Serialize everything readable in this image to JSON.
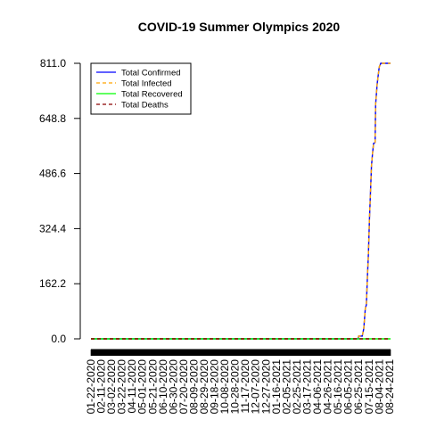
{
  "chart_data": {
    "type": "line",
    "title": "COVID-19 Summer Olympics 2020",
    "xlabel": "",
    "ylabel": "",
    "ylim": [
      0,
      811
    ],
    "yticks": [
      "0.0",
      "162.2",
      "324.4",
      "486.6",
      "648.8",
      "811.0"
    ],
    "xticks": [
      "01-22-2020",
      "02-11-2020",
      "03-02-2020",
      "03-22-2020",
      "04-11-2020",
      "05-01-2020",
      "05-21-2020",
      "06-10-2020",
      "06-30-2020",
      "07-20-2020",
      "08-09-2020",
      "08-29-2020",
      "09-18-2020",
      "10-08-2020",
      "10-28-2020",
      "11-17-2020",
      "12-07-2020",
      "12-27-2020",
      "01-16-2021",
      "02-05-2021",
      "02-25-2021",
      "03-17-2021",
      "04-06-2021",
      "04-26-2021",
      "05-16-2021",
      "06-05-2021",
      "06-25-2021",
      "07-15-2021",
      "08-04-2021",
      "08-24-2021"
    ],
    "x_start": "01-22-2020",
    "x_end": "08-26-2021",
    "legend_position": "top-left",
    "grid": false,
    "series": [
      {
        "name": "Total Confirmed",
        "color": "#0000ff",
        "line": "solid",
        "points": [
          [
            "01-22-2020",
            0
          ],
          [
            "06-24-2021",
            0
          ],
          [
            "06-25-2021",
            8
          ],
          [
            "07-02-2021",
            8
          ],
          [
            "07-05-2021",
            30
          ],
          [
            "07-08-2021",
            90
          ],
          [
            "07-10-2021",
            100
          ],
          [
            "07-12-2021",
            180
          ],
          [
            "07-14-2021",
            250
          ],
          [
            "07-16-2021",
            350
          ],
          [
            "07-18-2021",
            430
          ],
          [
            "07-20-2021",
            510
          ],
          [
            "07-22-2021",
            545
          ],
          [
            "07-24-2021",
            575
          ],
          [
            "07-27-2021",
            578
          ],
          [
            "07-28-2021",
            690
          ],
          [
            "07-31-2021",
            750
          ],
          [
            "08-04-2021",
            800
          ],
          [
            "08-07-2021",
            811
          ],
          [
            "08-26-2021",
            811
          ]
        ]
      },
      {
        "name": "Total Infected",
        "color": "#ffa500",
        "line": "dashed",
        "points": [
          [
            "01-22-2020",
            0
          ],
          [
            "06-24-2021",
            0
          ],
          [
            "06-25-2021",
            8
          ],
          [
            "07-02-2021",
            8
          ],
          [
            "07-05-2021",
            30
          ],
          [
            "07-08-2021",
            90
          ],
          [
            "07-10-2021",
            100
          ],
          [
            "07-12-2021",
            180
          ],
          [
            "07-14-2021",
            250
          ],
          [
            "07-16-2021",
            350
          ],
          [
            "07-18-2021",
            430
          ],
          [
            "07-20-2021",
            510
          ],
          [
            "07-22-2021",
            545
          ],
          [
            "07-24-2021",
            575
          ],
          [
            "07-27-2021",
            578
          ],
          [
            "07-28-2021",
            690
          ],
          [
            "07-31-2021",
            750
          ],
          [
            "08-04-2021",
            800
          ],
          [
            "08-07-2021",
            811
          ],
          [
            "08-26-2021",
            811
          ]
        ]
      },
      {
        "name": "Total Recovered",
        "color": "#00ff00",
        "line": "solid",
        "points": [
          [
            "01-22-2020",
            0
          ],
          [
            "08-26-2021",
            0
          ]
        ]
      },
      {
        "name": "Total Deaths",
        "color": "#8b0000",
        "line": "dashed",
        "points": [
          [
            "01-22-2020",
            0
          ],
          [
            "08-26-2021",
            0
          ]
        ]
      }
    ]
  }
}
